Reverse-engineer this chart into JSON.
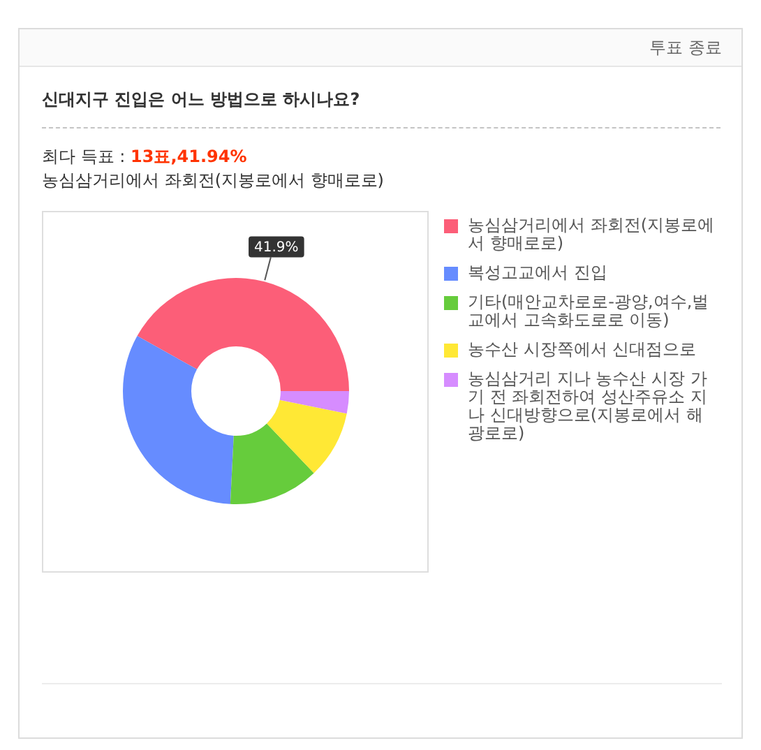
{
  "chart_data": {
    "type": "donut",
    "title": "신대지구 진입은 어느 방법으로 하시나요?",
    "annotations": [
      "투표 종료",
      "최다 득표 : ",
      "13표,41.94%",
      "농심삼거리에서 좌회전(지봉로에서 향매로로)"
    ],
    "categories": [
      "농심삼거리에서 좌회전(지봉로에서 향매로로)",
      "복성고교에서 진입",
      "기타(매안교차로로-광양,여수,벌교에서 고속화도로로 이동)",
      "농수산 시장쪽에서 신대점으로",
      "농심삼거리 지나 농수산 시장 가기 전 좌회전하여 성산주유소 지나 신대방향으로(지봉로에서 해광로로)"
    ],
    "values": [
      41.9,
      32.3,
      12.9,
      9.7,
      3.2
    ],
    "colors": [
      "#fc5e78",
      "#668cff",
      "#66cc3c",
      "#ffe835",
      "#d68cff"
    ],
    "value_labels": [
      "41.9%",
      null,
      null,
      null,
      null
    ],
    "legend": "right"
  }
}
